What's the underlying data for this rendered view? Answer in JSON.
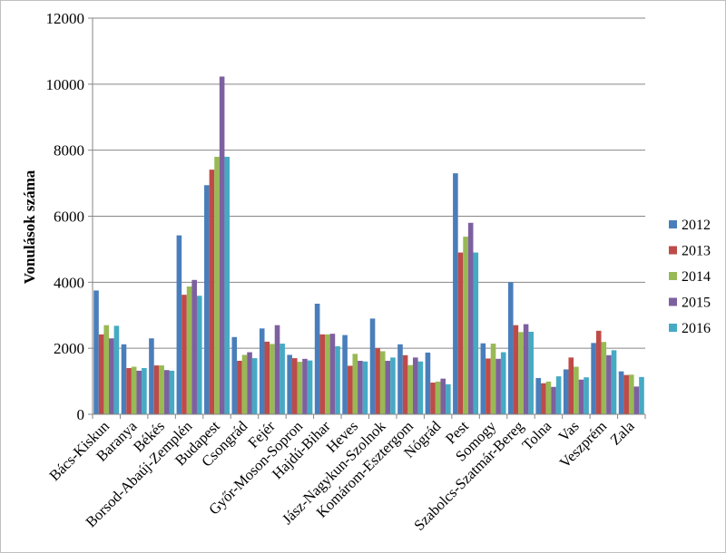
{
  "chart_data": {
    "type": "bar",
    "title": "",
    "xlabel": "",
    "ylabel": "Vonulások száma",
    "ylim": [
      0,
      12000
    ],
    "yticks": [
      0,
      2000,
      4000,
      6000,
      8000,
      10000,
      12000
    ],
    "grid": true,
    "legend_position": "right",
    "categories": [
      "Bács-Kiskun",
      "Baranya",
      "Békés",
      "Borsod-Abaúj-Zemplén",
      "Budapest",
      "Csongrád",
      "Fejér",
      "Győr-Moson-Sopron",
      "Hajdú-Bihar",
      "Heves",
      "Jász-Nagykun-Szolnok",
      "Komárom-Esztergom",
      "Nógrád",
      "Pest",
      "Somogy",
      "Szabolcs-Szatmár-Bereg",
      "Tolna",
      "Vas",
      "Veszprém",
      "Zala"
    ],
    "series": [
      {
        "name": "2012",
        "color": "#4a7ebb",
        "values": [
          3750,
          2120,
          2300,
          5420,
          6940,
          2340,
          2600,
          1800,
          3350,
          2400,
          2900,
          2120,
          1870,
          7300,
          2150,
          4000,
          1100,
          1360,
          2160,
          1300
        ]
      },
      {
        "name": "2013",
        "color": "#be4b48",
        "values": [
          2420,
          1400,
          1480,
          3620,
          7410,
          1620,
          2200,
          1700,
          2420,
          1470,
          2000,
          1790,
          960,
          4900,
          1690,
          2700,
          940,
          1720,
          2530,
          1190
        ]
      },
      {
        "name": "2014",
        "color": "#98b954",
        "values": [
          2700,
          1440,
          1480,
          3870,
          7800,
          1800,
          2130,
          1590,
          2420,
          1830,
          1910,
          1490,
          990,
          5380,
          2140,
          2490,
          990,
          1440,
          2190,
          1200
        ]
      },
      {
        "name": "2015",
        "color": "#7d60a0",
        "values": [
          2300,
          1320,
          1340,
          4070,
          10230,
          1880,
          2700,
          1680,
          2440,
          1620,
          1620,
          1720,
          1080,
          5800,
          1680,
          2730,
          830,
          1050,
          1790,
          840
        ]
      },
      {
        "name": "2016",
        "color": "#46aac4",
        "values": [
          2680,
          1400,
          1320,
          3590,
          7800,
          1700,
          2140,
          1630,
          2060,
          1600,
          1720,
          1600,
          910,
          4900,
          1880,
          2500,
          1150,
          1120,
          1940,
          1130
        ]
      }
    ]
  }
}
